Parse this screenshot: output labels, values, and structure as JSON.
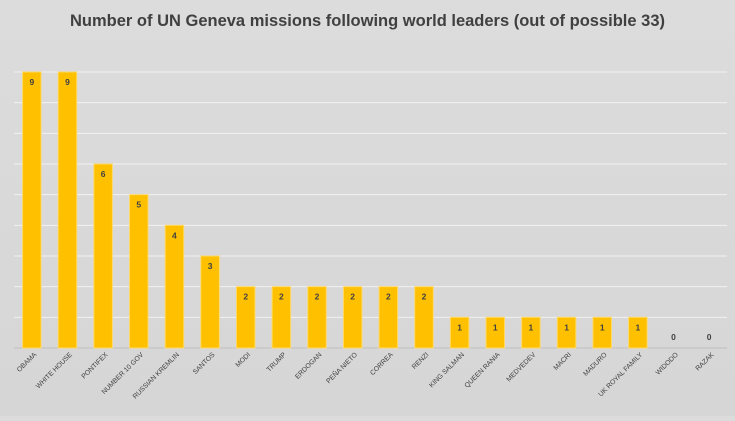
{
  "chart_data": {
    "type": "bar",
    "title": "Number of UN Geneva missions following world leaders (out of possible 33)",
    "xlabel": "",
    "ylabel": "",
    "categories": [
      "OBAMA",
      "WHITE HOUSE",
      "PONTIFEX",
      "NUMBER 10 GOV",
      "RUSSIAN KREMLIN",
      "SANTOS",
      "MODI",
      "TRUMP",
      "ERDOGAN",
      "PEÑA NIETO",
      "CORREA",
      "RENZI",
      "KING SALMAN",
      "QUEEN RANIA",
      "MEDVEDEV",
      "MACRI",
      "MADURO",
      "UK ROYAL FAMILY",
      "WIDODO",
      "RAZAK"
    ],
    "values": [
      9,
      9,
      6,
      5,
      4,
      3,
      2,
      2,
      2,
      2,
      2,
      2,
      1,
      1,
      1,
      1,
      1,
      1,
      0,
      0
    ],
    "ylim": [
      0,
      9
    ],
    "grid": true,
    "legend": "none",
    "colors": {
      "bar": "#FFC000",
      "bar_edge": "#FFD966",
      "grid": "#f2f2f2",
      "text": "#404040"
    }
  }
}
